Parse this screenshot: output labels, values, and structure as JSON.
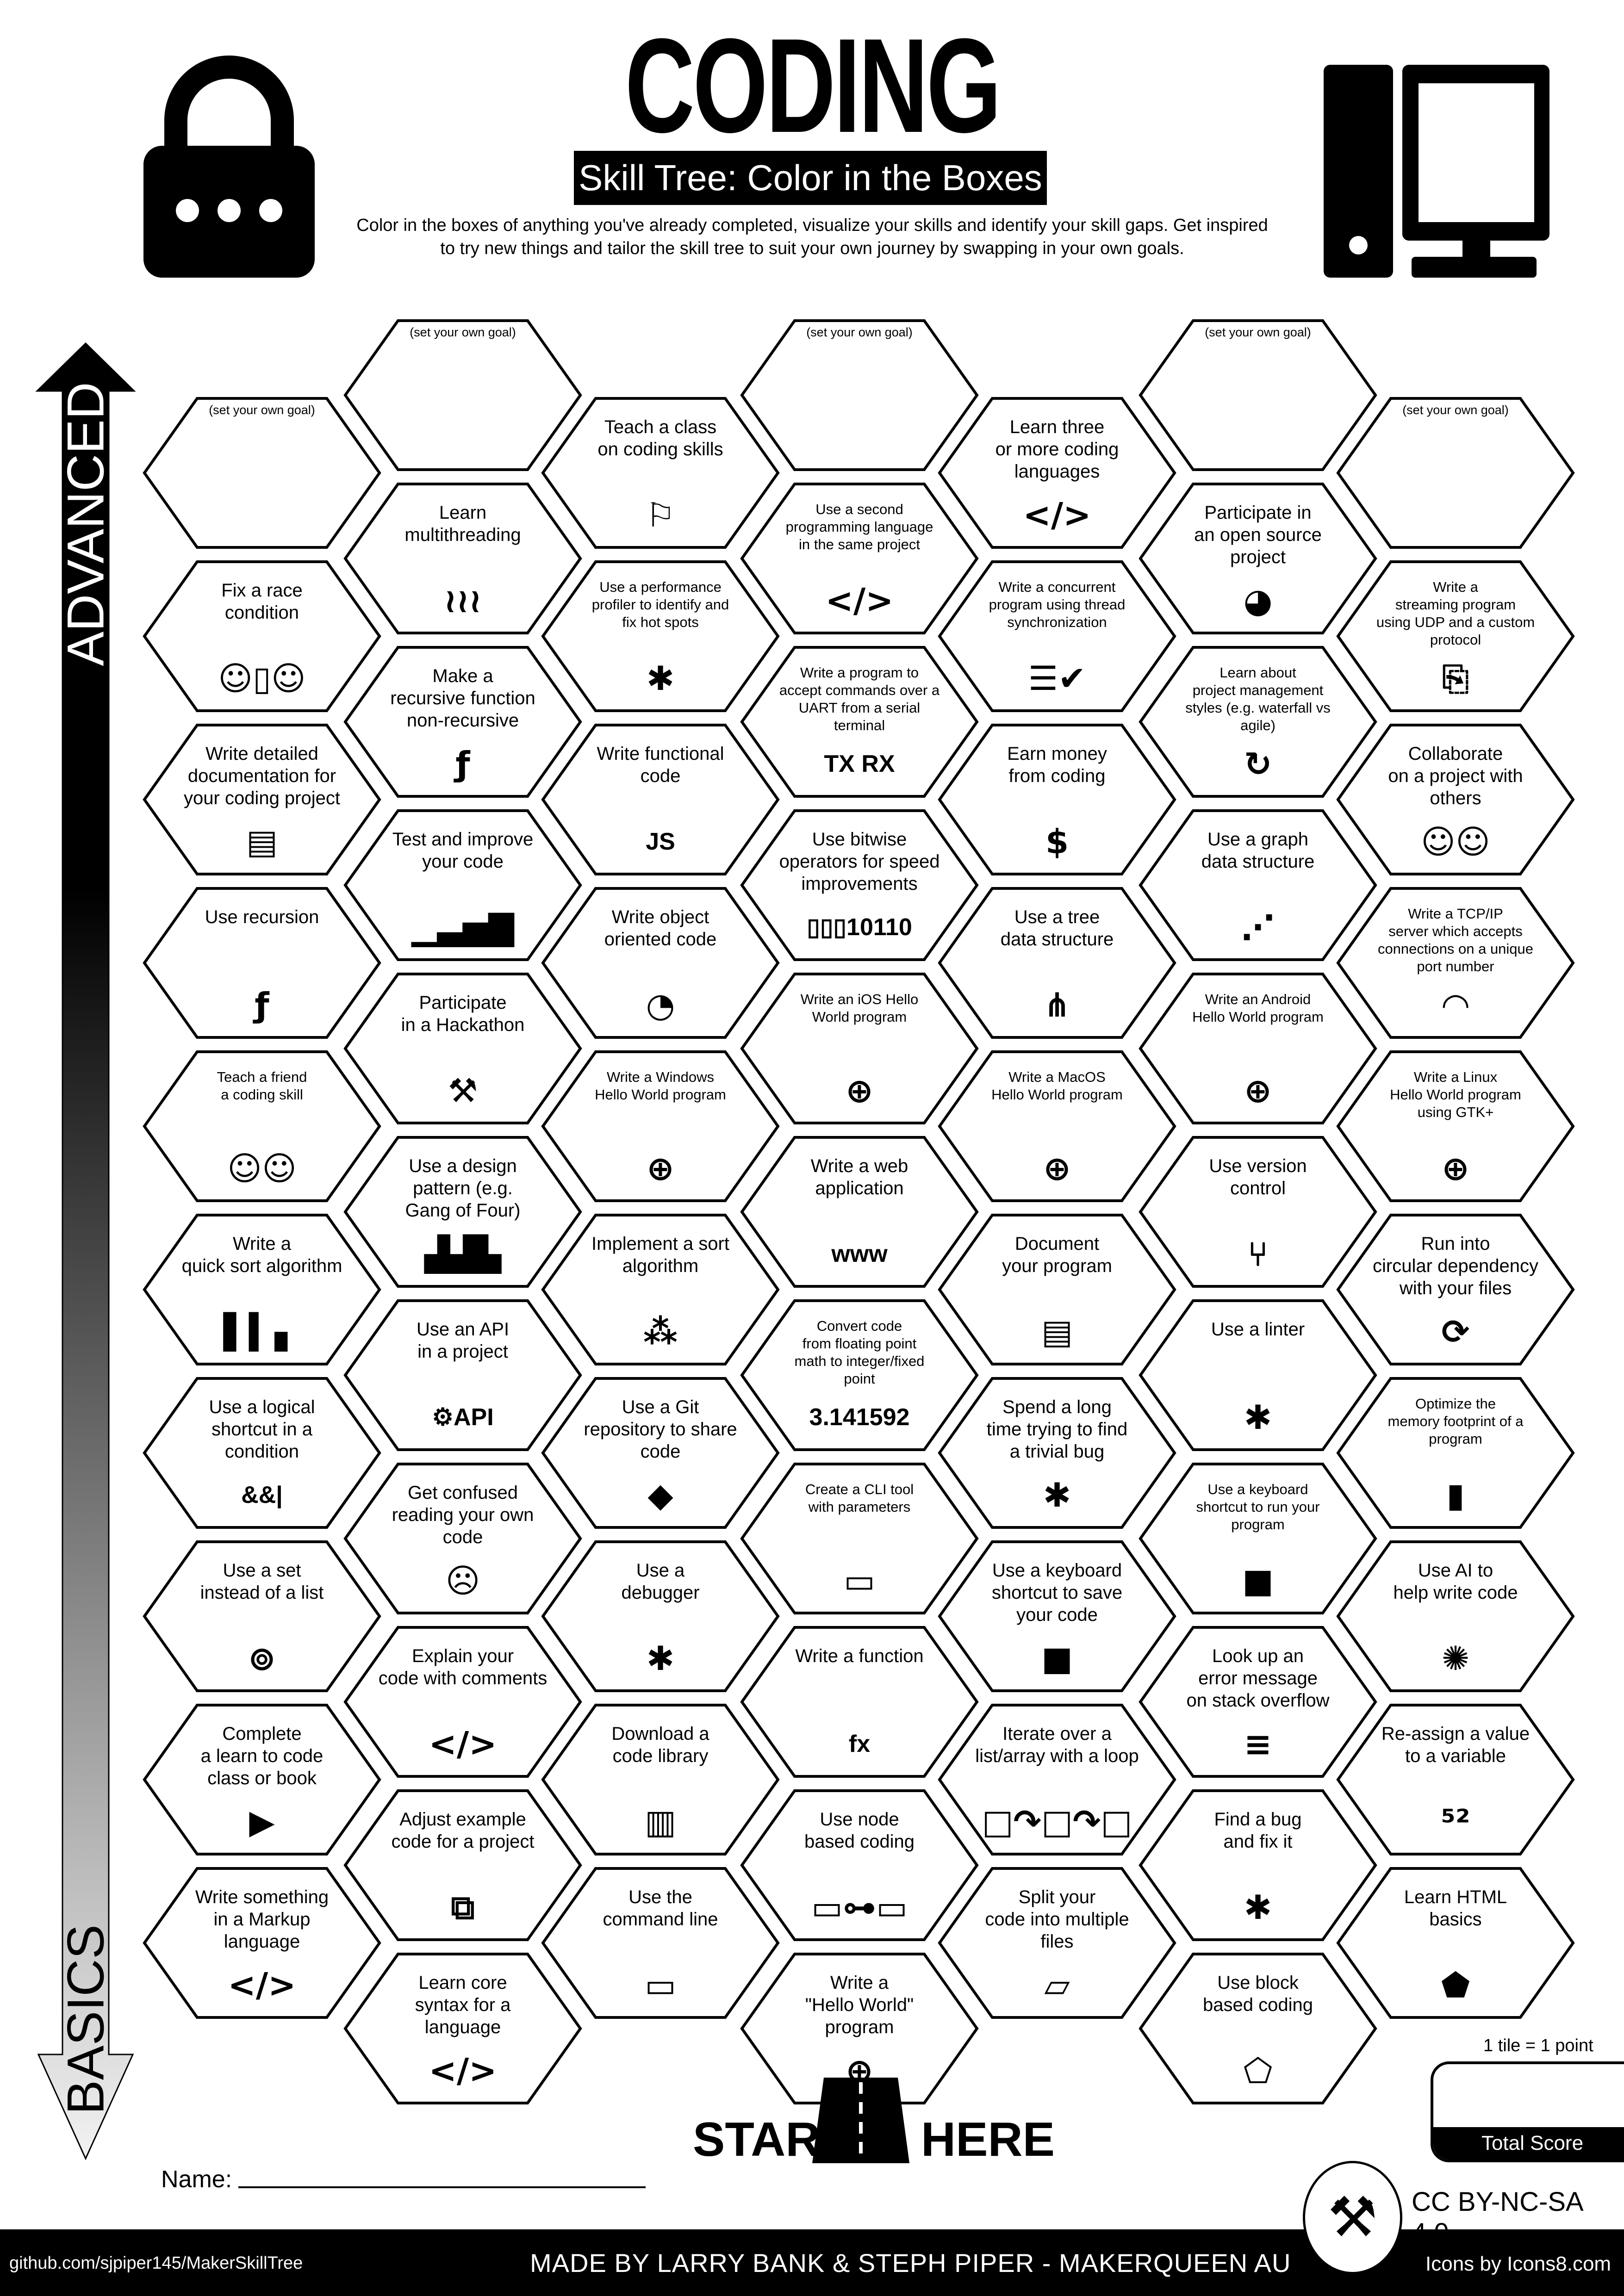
{
  "header": {
    "title": "CODING",
    "subtitle": "Skill Tree: Color in the Boxes",
    "description": "Color in the boxes of anything you've already completed, visualize your skills and identify your skill gaps.  Get inspired\nto try new things and tailor the skill tree to suit your own journey by swapping in your own goals.",
    "left_icon": "lock-icon",
    "right_icon": "desktop-computer-icon"
  },
  "axis": {
    "top_label": "ADVANCED",
    "bottom_label": "BASICS"
  },
  "columns": [
    [
      {
        "goal": "(set your own goal)"
      },
      {
        "text": "Fix a race\ncondition",
        "icon": "people-door"
      },
      {
        "text": "Write detailed\ndocumentation for\nyour coding project",
        "icon": "document"
      },
      {
        "text": "Use recursion",
        "icon": "recursion"
      },
      {
        "text": "Teach a friend\na coding skill",
        "icon": "people-laptop",
        "small": true
      },
      {
        "text": "Write a\nquick sort algorithm",
        "icon": "bar-chart"
      },
      {
        "text": "Use a logical\nshortcut in a\ncondition",
        "icon": "logical-and",
        "icon_text": "&&|"
      },
      {
        "text": "Use a set\ninstead of a list",
        "icon": "set"
      },
      {
        "text": "Complete\na learn to code\nclass or book",
        "icon": "video"
      },
      {
        "text": "Write something\nin a Markup\nlanguage",
        "icon": "code"
      }
    ],
    [
      {
        "goal": "(set your own goal)"
      },
      {
        "text": "Learn\nmultithreading",
        "icon": "threads"
      },
      {
        "text": "Make a\nrecursive function\nnon-recursive",
        "icon": "recursion"
      },
      {
        "text": "Test and improve\nyour code",
        "icon": "growth-chart"
      },
      {
        "text": "Participate\nin a Hackathon",
        "icon": "tools"
      },
      {
        "text": "Use a design\npattern (e.g.\nGang of Four)",
        "icon": "factory"
      },
      {
        "text": "Use an API\nin a project",
        "icon": "api-gear",
        "icon_text": "⚙API"
      },
      {
        "text": "Get confused\nreading your own\ncode",
        "icon": "confused-face"
      },
      {
        "text": "Explain your\ncode with comments",
        "icon": "code"
      },
      {
        "text": "Adjust example\ncode for a project",
        "icon": "copy-paste"
      },
      {
        "text": "Learn core\nsyntax for a\nlanguage",
        "icon": "code"
      }
    ],
    [
      {
        "text": "Teach a class\non coding skills",
        "icon": "presenter"
      },
      {
        "text": "Use a performance\nprofiler to identify and\nfix hot spots",
        "icon": "bug",
        "small": true
      },
      {
        "text": "Write functional\ncode",
        "icon": "javascript",
        "icon_text": "JS"
      },
      {
        "text": "Write object\noriented code",
        "icon": "duck"
      },
      {
        "text": "Write a Windows\nHello World program",
        "icon": "globe",
        "small": true
      },
      {
        "text": "Implement a sort\nalgorithm",
        "icon": "bubbles"
      },
      {
        "text": "Use a Git\nrepository to share\ncode",
        "icon": "git"
      },
      {
        "text": "Use a\ndebugger",
        "icon": "bug"
      },
      {
        "text": "Download a\ncode library",
        "icon": "library"
      },
      {
        "text": "Use the\ncommand line",
        "icon": "terminal"
      }
    ],
    [
      {
        "goal": "(set your own goal)"
      },
      {
        "text": "Use a second\nprogramming language\nin the same project",
        "icon": "code",
        "small": true
      },
      {
        "text": "Write a program to\naccept commands over a\nUART from a serial\nterminal",
        "icon": "tx-rx",
        "icon_text": "TX RX",
        "small": true
      },
      {
        "text": "Use bitwise\noperators for speed\nimprovements",
        "icon": "binary",
        "icon_text": "▯▯▯10110"
      },
      {
        "text": "Write an iOS Hello\nWorld program",
        "icon": "globe",
        "small": true
      },
      {
        "text": "Write a web\napplication",
        "icon": "www",
        "icon_text": "www"
      },
      {
        "text": "Convert code\nfrom floating point\nmath to integer/fixed\npoint",
        "icon": "pi",
        "icon_text": "3.141592",
        "small": true
      },
      {
        "text": "Create a CLI tool\nwith parameters",
        "icon": "terminal",
        "small": true
      },
      {
        "text": "Write a function",
        "icon": "function",
        "icon_text": "fx"
      },
      {
        "text": "Use node\nbased coding",
        "icon": "node-flow"
      },
      {
        "text": "Write a\n\"Hello World\"\nprogram",
        "icon": "globe"
      }
    ],
    [
      {
        "text": "Learn three\nor more coding\nlanguages",
        "icon": "code"
      },
      {
        "text": "Write a concurrent\nprogram using thread\nsynchronization",
        "icon": "checklist",
        "small": true
      },
      {
        "text": "Earn money\nfrom coding",
        "icon": "money-bag"
      },
      {
        "text": "Use a tree\ndata structure",
        "icon": "tree-structure"
      },
      {
        "text": "Write a MacOS\nHello World program",
        "icon": "globe",
        "small": true
      },
      {
        "text": "Document\nyour program",
        "icon": "document"
      },
      {
        "text": "Spend a long\ntime trying to find\na trivial bug",
        "icon": "bug"
      },
      {
        "text": "Use a keyboard\nshortcut to save\nyour code",
        "icon": "key"
      },
      {
        "text": "Iterate over a\nlist/array with a loop",
        "icon": "loop"
      },
      {
        "text": "Split your\ncode into multiple\nfiles",
        "icon": "folder"
      }
    ],
    [
      {
        "goal": "(set your own goal)"
      },
      {
        "text": "Participate in\nan open source\nproject",
        "icon": "open-source"
      },
      {
        "text": "Learn about\nproject management\nstyles (e.g. waterfall vs\nagile)",
        "icon": "agile",
        "small": true
      },
      {
        "text": "Use a graph\ndata structure",
        "icon": "graph"
      },
      {
        "text": "Write an Android\nHello World program",
        "icon": "globe",
        "small": true
      },
      {
        "text": "Use version\ncontrol",
        "icon": "branch"
      },
      {
        "text": "Use a linter",
        "icon": "bug"
      },
      {
        "text": "Use a keyboard\nshortcut to run your\nprogram",
        "icon": "key",
        "small": true
      },
      {
        "text": "Look up an\nerror message\non stack overflow",
        "icon": "stack-overflow"
      },
      {
        "text": "Find a bug\nand fix it",
        "icon": "bug"
      },
      {
        "text": "Use block\nbased coding",
        "icon": "block"
      }
    ],
    [
      {
        "goal": "(set your own goal)"
      },
      {
        "text": "Write a\nstreaming program\nusing UDP and a custom\nprotocol",
        "icon": "file-return",
        "small": true
      },
      {
        "text": "Collaborate\non a project with\nothers",
        "icon": "people-laptop"
      },
      {
        "text": "Write a TCP/IP\nserver which accepts\nconnections on a unique\nport number",
        "icon": "wifi",
        "small": true
      },
      {
        "text": "Write a Linux\nHello World program\nusing GTK+",
        "icon": "globe",
        "small": true
      },
      {
        "text": "Run into\ncircular dependency\nwith your files",
        "icon": "refresh"
      },
      {
        "text": "Optimize the\nmemory footprint of a\nprogram",
        "icon": "sd-card",
        "small": true
      },
      {
        "text": "Use AI to\nhelp write code",
        "icon": "brain"
      },
      {
        "text": "Re-assign a value\nto a variable",
        "icon": "reassign"
      },
      {
        "text": "Learn HTML\nbasics",
        "icon": "html5"
      }
    ]
  ],
  "start": {
    "left": "START",
    "right": "HERE",
    "icon": "road-icon"
  },
  "name_label": "Name:",
  "score": {
    "note": "1 tile = 1 point",
    "label": "Total Score"
  },
  "license": "CC BY-NC-SA 4.0",
  "footer": {
    "left": "github.com/sjpiper145/MakerSkillTree",
    "center": "MADE BY LARRY BANK & STEPH PIPER  -  MAKERQUEEN AU",
    "right": "Icons by Icons8.com"
  },
  "colors": {
    "ink": "#000000",
    "paper": "#ffffff",
    "arrow_top": "#000000",
    "arrow_bottom": "#f2f2f2"
  }
}
